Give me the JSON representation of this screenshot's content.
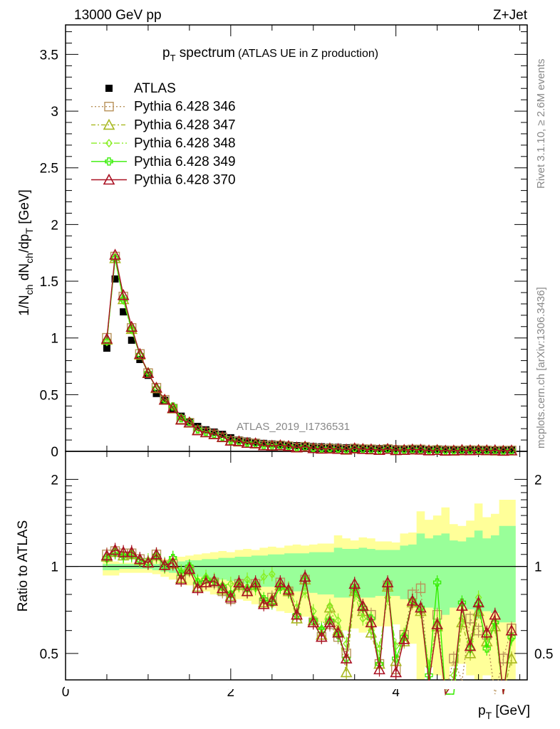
{
  "header": {
    "left": "13000 GeV pp",
    "right": "Z+Jet"
  },
  "side": {
    "rivet": "Rivet 3.1.10, ≥ 2.6M events",
    "mcplots": "mcplots.cern.ch [arXiv:1306.3436]"
  },
  "watermark": "ATLAS_2019_I1736531",
  "colors": {
    "atlas": "#000000",
    "m346": "#b8925a",
    "m347": "#a8b820",
    "m348": "#88ee22",
    "m349": "#33ee00",
    "m370": "#aa1122",
    "band_yellow": "#ffff99",
    "band_green": "#99ff99"
  },
  "chart_data": [
    {
      "type": "scatter",
      "panel": "main",
      "title_main": "p",
      "title_sub": "T",
      "title_rest": " spectrum",
      "title_note": "(ATLAS UE in Z production)",
      "ylabel_parts": [
        "1/N",
        "ch",
        " dN",
        "ch",
        "/dp",
        "T",
        " [GeV]"
      ],
      "xlim": [
        0,
        5.59
      ],
      "ylim": [
        0,
        3.76
      ],
      "yticks": [
        0,
        0.5,
        1,
        1.5,
        2,
        2.5,
        3,
        3.5
      ],
      "ytick_labels": [
        "0",
        "0.5",
        "1",
        "1.5",
        "2",
        "2.5",
        "3",
        "3.5"
      ],
      "legend_position": "top-left",
      "legend": [
        "ATLAS",
        "Pythia 6.428 346",
        "Pythia 6.428 347",
        "Pythia 6.428 348",
        "Pythia 6.428 349",
        "Pythia 6.428 370"
      ],
      "x": [
        0.5,
        0.6,
        0.7,
        0.8,
        0.9,
        1.0,
        1.1,
        1.2,
        1.3,
        1.4,
        1.5,
        1.6,
        1.7,
        1.8,
        1.9,
        2.0,
        2.1,
        2.2,
        2.3,
        2.4,
        2.5,
        2.6,
        2.7,
        2.8,
        2.9,
        3.0,
        3.1,
        3.2,
        3.3,
        3.4,
        3.5,
        3.6,
        3.7,
        3.8,
        3.9,
        4.0,
        4.1,
        4.2,
        4.3,
        4.4,
        4.5,
        4.6,
        4.7,
        4.8,
        4.9,
        5.0,
        5.1,
        5.2,
        5.3,
        5.4
      ],
      "atlas": [
        0.91,
        1.52,
        1.23,
        0.98,
        0.81,
        0.67,
        0.51,
        0.45,
        0.37,
        0.31,
        0.26,
        0.22,
        0.19,
        0.17,
        0.15,
        0.12,
        0.1,
        0.09,
        0.08,
        0.07,
        0.065,
        0.06,
        0.055,
        0.05,
        0.045,
        0.042,
        0.04,
        0.037,
        0.035,
        0.032,
        0.03,
        0.028,
        0.027,
        0.025,
        0.024,
        0.023,
        0.022,
        0.021,
        0.02,
        0.019,
        0.018,
        0.018,
        0.017,
        0.016,
        0.016,
        0.015,
        0.015,
        0.014,
        0.014,
        0.013
      ]
    },
    {
      "type": "line",
      "panel": "ratio",
      "ylabel": "Ratio to ATLAS",
      "xlabel_main": "p",
      "xlabel_sub": "T",
      "xlabel_rest": " [GeV]",
      "xlim": [
        0,
        5.59
      ],
      "ylim": [
        0.405,
        2.5
      ],
      "yscale": "log",
      "xticks": [
        0,
        2,
        4
      ],
      "xtick_labels": [
        "0",
        "2",
        "4"
      ],
      "yticks": [
        0.5,
        1,
        2
      ],
      "ytick_labels": [
        "0.5",
        "1",
        "2"
      ],
      "band_yellow_up": [
        1.04,
        1.04,
        1.03,
        1.03,
        1.03,
        1.04,
        1.05,
        1.06,
        1.07,
        1.08,
        1.09,
        1.1,
        1.11,
        1.12,
        1.13,
        1.12,
        1.14,
        1.15,
        1.14,
        1.16,
        1.17,
        1.16,
        1.18,
        1.19,
        1.18,
        1.19,
        1.2,
        1.2,
        1.28,
        1.25,
        1.23,
        1.26,
        1.25,
        1.22,
        1.22,
        1.21,
        1.3,
        1.31,
        1.55,
        1.45,
        1.5,
        1.6,
        1.4,
        1.38,
        1.44,
        1.65,
        1.48,
        1.52,
        1.7,
        1.7
      ],
      "band_yellow_down": [
        0.93,
        0.93,
        0.95,
        0.95,
        0.95,
        0.95,
        0.94,
        0.92,
        0.9,
        0.88,
        0.86,
        0.84,
        0.82,
        0.8,
        0.8,
        0.78,
        0.77,
        0.76,
        0.74,
        0.72,
        0.72,
        0.7,
        0.69,
        0.68,
        0.67,
        0.66,
        0.64,
        0.63,
        0.57,
        0.6,
        0.61,
        0.59,
        0.6,
        0.62,
        0.62,
        0.63,
        0.55,
        0.54,
        0.4,
        0.45,
        0.42,
        0.38,
        0.45,
        0.46,
        0.42,
        0.36,
        0.42,
        0.4,
        0.35,
        0.35
      ],
      "band_green_up": [
        1.02,
        1.02,
        1.02,
        1.02,
        1.02,
        1.02,
        1.02,
        1.03,
        1.03,
        1.04,
        1.05,
        1.05,
        1.06,
        1.06,
        1.07,
        1.07,
        1.08,
        1.08,
        1.09,
        1.09,
        1.1,
        1.1,
        1.11,
        1.11,
        1.11,
        1.12,
        1.12,
        1.12,
        1.16,
        1.15,
        1.15,
        1.16,
        1.15,
        1.14,
        1.14,
        1.14,
        1.18,
        1.19,
        1.3,
        1.25,
        1.28,
        1.3,
        1.23,
        1.22,
        1.26,
        1.33,
        1.25,
        1.28,
        1.38,
        1.38
      ],
      "band_green_down": [
        0.97,
        0.97,
        0.98,
        0.98,
        0.98,
        0.98,
        0.97,
        0.96,
        0.95,
        0.94,
        0.93,
        0.92,
        0.91,
        0.9,
        0.9,
        0.89,
        0.88,
        0.87,
        0.86,
        0.85,
        0.85,
        0.84,
        0.83,
        0.82,
        0.82,
        0.81,
        0.8,
        0.8,
        0.78,
        0.78,
        0.79,
        0.78,
        0.78,
        0.79,
        0.79,
        0.79,
        0.77,
        0.76,
        0.7,
        0.72,
        0.71,
        0.68,
        0.72,
        0.73,
        0.71,
        0.66,
        0.7,
        0.69,
        0.64,
        0.64
      ],
      "series": [
        {
          "name": "Pythia 6.428 346",
          "key": "m346",
          "marker": "square",
          "dash": "2,3",
          "values": [
            1.1,
            1.13,
            1.11,
            1.11,
            1.06,
            1.03,
            1.1,
            1.01,
            1.02,
            0.9,
            0.97,
            0.85,
            0.88,
            0.88,
            0.82,
            0.77,
            0.87,
            0.82,
            0.87,
            0.75,
            0.78,
            0.88,
            0.82,
            0.66,
            0.9,
            0.64,
            0.57,
            0.63,
            0.57,
            0.5,
            0.84,
            0.7,
            0.68,
            0.46,
            0.86,
            0.44,
            0.58,
            0.8,
            0.84,
            0.41,
            0.68,
            0.31,
            0.48,
            0.4,
            0.66,
            0.6,
            0.58,
            0.36,
            0.48,
            0.61
          ]
        },
        {
          "name": "Pythia 6.428 347",
          "key": "m347",
          "marker": "triangle",
          "dash": "6,3,2,3",
          "values": [
            1.08,
            1.12,
            1.09,
            1.1,
            1.05,
            1.03,
            1.09,
            1.01,
            1.02,
            0.91,
            0.97,
            0.85,
            0.88,
            0.89,
            0.83,
            0.79,
            0.86,
            0.82,
            0.86,
            0.75,
            0.77,
            0.86,
            0.82,
            0.66,
            0.9,
            0.65,
            0.58,
            0.72,
            0.6,
            0.43,
            0.82,
            0.7,
            0.59,
            0.46,
            0.85,
            0.47,
            0.55,
            0.75,
            0.7,
            0.41,
            0.62,
            0.32,
            0.36,
            0.64,
            0.5,
            0.7,
            0.55,
            0.62,
            0.33,
            0.48
          ]
        },
        {
          "name": "Pythia 6.428 348",
          "key": "m348",
          "marker": "diamond",
          "dash": "8,3,2,3",
          "values": [
            1.06,
            1.12,
            1.08,
            1.09,
            1.05,
            1.05,
            1.08,
            1.02,
            1.07,
            0.96,
            1.0,
            0.89,
            0.92,
            0.9,
            0.86,
            0.87,
            0.88,
            0.9,
            0.84,
            0.92,
            0.94,
            0.86,
            0.84,
            0.72,
            0.82,
            0.7,
            0.61,
            0.73,
            0.65,
            0.54,
            0.8,
            0.66,
            0.6,
            0.52,
            0.78,
            0.53,
            0.58,
            0.76,
            0.7,
            0.45,
            0.64,
            0.35,
            0.42,
            0.66,
            0.55,
            0.78,
            0.57,
            0.64,
            0.36,
            0.56
          ]
        },
        {
          "name": "Pythia 6.428 349",
          "key": "m349",
          "marker": "cross",
          "dash": "",
          "values": [
            1.07,
            1.12,
            1.09,
            1.1,
            1.05,
            1.03,
            1.09,
            1.0,
            1.07,
            0.94,
            1.0,
            0.88,
            0.9,
            0.89,
            0.85,
            0.8,
            0.87,
            0.84,
            0.86,
            0.77,
            0.75,
            0.85,
            0.82,
            0.68,
            0.9,
            0.65,
            0.6,
            0.65,
            0.58,
            0.48,
            0.84,
            0.72,
            0.66,
            0.46,
            0.86,
            0.48,
            0.57,
            0.76,
            0.72,
            0.42,
            0.88,
            0.33,
            0.36,
            0.75,
            0.52,
            0.74,
            0.52,
            0.64,
            0.34,
            0.57
          ]
        },
        {
          "name": "Pythia 6.428 370",
          "key": "m370",
          "marker": "triangle",
          "dash": "",
          "values": [
            1.09,
            1.14,
            1.12,
            1.12,
            1.06,
            1.03,
            1.1,
            1.01,
            1.03,
            0.9,
            0.98,
            0.84,
            0.88,
            0.89,
            0.84,
            0.78,
            0.88,
            0.82,
            0.88,
            0.74,
            0.76,
            0.88,
            0.83,
            0.68,
            0.92,
            0.64,
            0.57,
            0.64,
            0.59,
            0.48,
            0.87,
            0.73,
            0.64,
            0.44,
            0.88,
            0.43,
            0.56,
            0.76,
            0.72,
            0.4,
            0.63,
            0.3,
            0.4,
            0.73,
            0.53,
            0.75,
            0.59,
            0.68,
            0.3,
            0.6
          ]
        }
      ]
    }
  ]
}
